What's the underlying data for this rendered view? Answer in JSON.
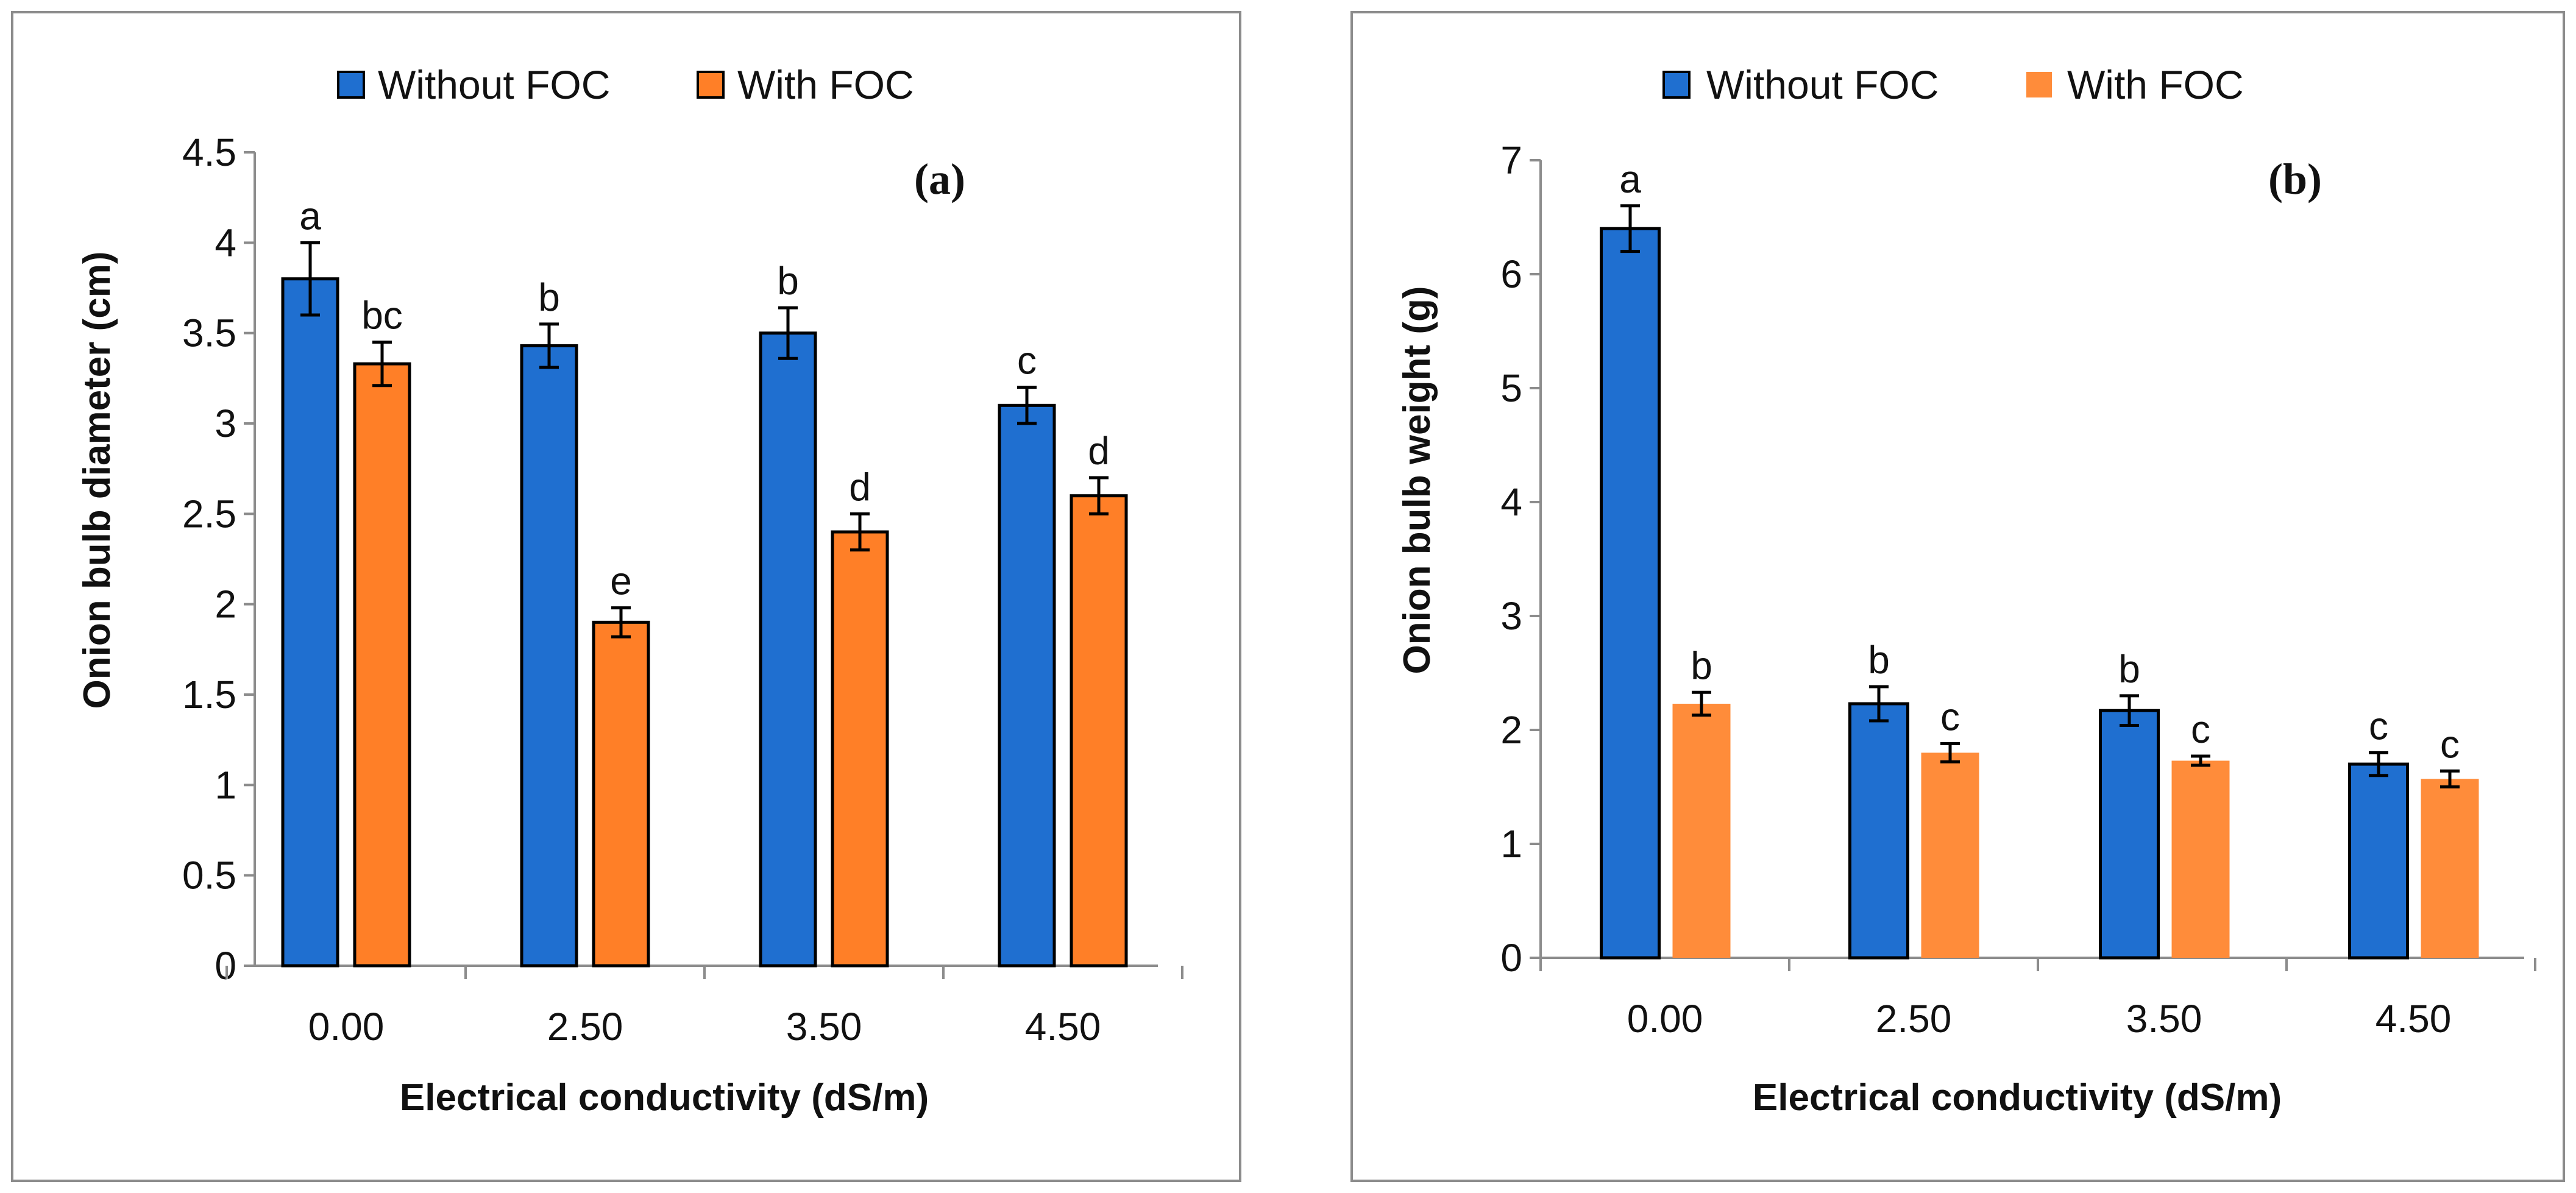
{
  "chart_data": [
    {
      "type": "bar",
      "panel_label": "(a)",
      "title": "",
      "xlabel": "Electrical conductivity (dS/m)",
      "ylabel": "Onion bulb diameter (cm)",
      "ylim": [
        0,
        4.5
      ],
      "ytick_step": 0.5,
      "ytick_labels": [
        "0",
        "0.5",
        "1",
        "1.5",
        "2",
        "2.5",
        "3",
        "3.5",
        "4",
        "4.5"
      ],
      "categories": [
        "0.00",
        "2.50",
        "3.50",
        "4.50"
      ],
      "legend_position": "top",
      "series": [
        {
          "name": "Without FOC",
          "color": "#1f6fd0",
          "values": [
            3.8,
            3.43,
            3.5,
            3.1
          ],
          "errors": [
            0.2,
            0.12,
            0.14,
            0.1
          ],
          "labels": [
            "a",
            "b",
            "b",
            "c"
          ]
        },
        {
          "name": "With FOC",
          "color": "#ff7f27",
          "values": [
            3.33,
            1.9,
            2.4,
            2.6
          ],
          "errors": [
            0.12,
            0.08,
            0.1,
            0.1
          ],
          "labels": [
            "bc",
            "e",
            "d",
            "d"
          ]
        }
      ]
    },
    {
      "type": "bar",
      "panel_label": "(b)",
      "title": "",
      "xlabel": "Electrical conductivity (dS/m)",
      "ylabel": "Onion bulb weight (g)",
      "ylim": [
        0,
        7
      ],
      "ytick_step": 1,
      "ytick_labels": [
        "0",
        "1",
        "2",
        "3",
        "4",
        "5",
        "6",
        "7"
      ],
      "categories": [
        "0.00",
        "2.50",
        "3.50",
        "4.50"
      ],
      "legend_position": "top",
      "series": [
        {
          "name": "Without FOC",
          "color": "#1f6fd0",
          "values": [
            6.4,
            2.23,
            2.17,
            1.7
          ],
          "errors": [
            0.2,
            0.15,
            0.13,
            0.1
          ],
          "labels": [
            "a",
            "b",
            "b",
            "c"
          ]
        },
        {
          "name": "With FOC",
          "color": "#ff8c3a",
          "values": [
            2.23,
            1.8,
            1.73,
            1.57
          ],
          "errors": [
            0.1,
            0.08,
            0.04,
            0.07
          ],
          "labels": [
            "b",
            "c",
            "c",
            "c"
          ]
        }
      ]
    }
  ]
}
